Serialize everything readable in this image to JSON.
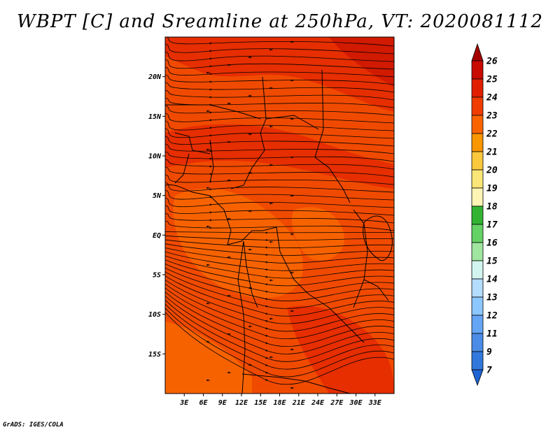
{
  "title": "WBPT [C] and Sreamline at 250hPa, VT: 2020081112",
  "credit": "GrADS: IGES/COLA",
  "map": {
    "lon_range": [
      0,
      36
    ],
    "lat_range": [
      -20,
      25
    ],
    "lat_ticks": [
      {
        "value": 20,
        "label": "20N"
      },
      {
        "value": 15,
        "label": "15N"
      },
      {
        "value": 10,
        "label": "10N"
      },
      {
        "value": 5,
        "label": "5N"
      },
      {
        "value": 0,
        "label": "EQ"
      },
      {
        "value": -5,
        "label": "5S"
      },
      {
        "value": -10,
        "label": "10S"
      },
      {
        "value": -15,
        "label": "15S"
      }
    ],
    "lon_ticks": [
      {
        "value": 3,
        "label": "3E"
      },
      {
        "value": 6,
        "label": "6E"
      },
      {
        "value": 9,
        "label": "9E"
      },
      {
        "value": 12,
        "label": "12E"
      },
      {
        "value": 15,
        "label": "15E"
      },
      {
        "value": 18,
        "label": "18E"
      },
      {
        "value": 21,
        "label": "21E"
      },
      {
        "value": 24,
        "label": "24E"
      },
      {
        "value": 27,
        "label": "27E"
      },
      {
        "value": 30,
        "label": "30E"
      },
      {
        "value": 33,
        "label": "33E"
      }
    ]
  },
  "colorbar": {
    "levels": [
      {
        "label": "26",
        "color": "#a50000"
      },
      {
        "label": "25",
        "color": "#c80a00"
      },
      {
        "label": "24",
        "color": "#e11e00"
      },
      {
        "label": "23",
        "color": "#f03c00"
      },
      {
        "label": "22",
        "color": "#fa6400"
      },
      {
        "label": "21",
        "color": "#fa9600"
      },
      {
        "label": "20",
        "color": "#fac83c"
      },
      {
        "label": "19",
        "color": "#fae678"
      },
      {
        "label": "18",
        "color": "#fff5b4"
      },
      {
        "label": "17",
        "color": "#32b432"
      },
      {
        "label": "16",
        "color": "#64d264"
      },
      {
        "label": "15",
        "color": "#a0e6a0"
      },
      {
        "label": "14",
        "color": "#d2f5f0"
      },
      {
        "label": "13",
        "color": "#b4dcff"
      },
      {
        "label": "12",
        "color": "#8cc8ff"
      },
      {
        "label": "11",
        "color": "#64a5f5"
      },
      {
        "label": "9",
        "color": "#4b8ce6"
      },
      {
        "label": "7",
        "color": "#3278dc"
      }
    ],
    "bottom_arrow_color": "#1e64d2"
  },
  "field_colors": {
    "base": "#f04a00",
    "darker": "#e62e00",
    "darkest": "#d21a00",
    "lighter": "#f76200"
  }
}
